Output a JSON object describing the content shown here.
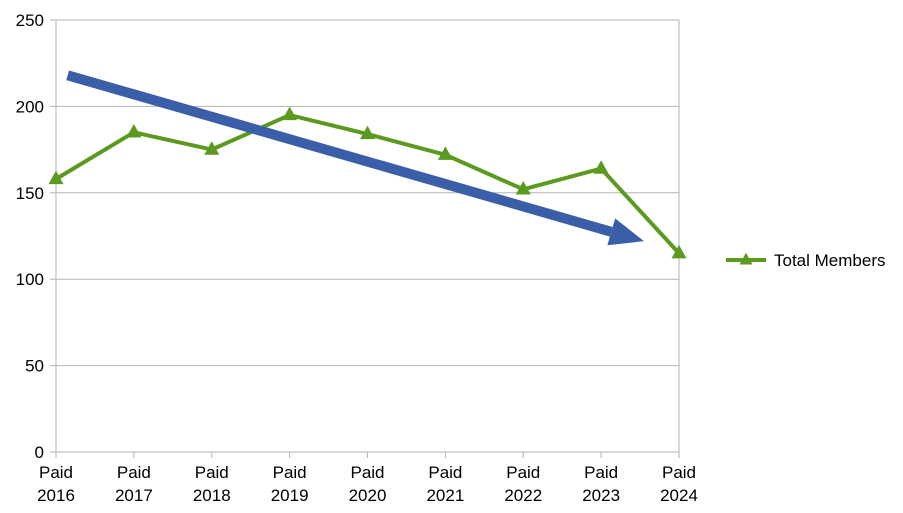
{
  "chart_data": {
    "type": "line",
    "categories": [
      [
        "Paid",
        "2016"
      ],
      [
        "Paid",
        "2017"
      ],
      [
        "Paid",
        "2018"
      ],
      [
        "Paid",
        "2019"
      ],
      [
        "Paid",
        "2020"
      ],
      [
        "Paid",
        "2021"
      ],
      [
        "Paid",
        "2022"
      ],
      [
        "Paid",
        "2023"
      ],
      [
        "Paid",
        "2024"
      ]
    ],
    "series": [
      {
        "name": "Total Members",
        "values": [
          158,
          185,
          175,
          195,
          184,
          172,
          152,
          164,
          115
        ],
        "color": "#5a9a1e",
        "marker": "triangle"
      }
    ],
    "ylim": [
      0,
      250
    ],
    "yticks": [
      0,
      50,
      100,
      150,
      200,
      250
    ],
    "grid": true,
    "legend": "right",
    "annotations": [
      {
        "type": "trend-arrow",
        "color": "#3a5fa8",
        "from": {
          "x": 0.15,
          "y": 218
        },
        "to": {
          "x": 7.55,
          "y": 122
        }
      }
    ]
  }
}
